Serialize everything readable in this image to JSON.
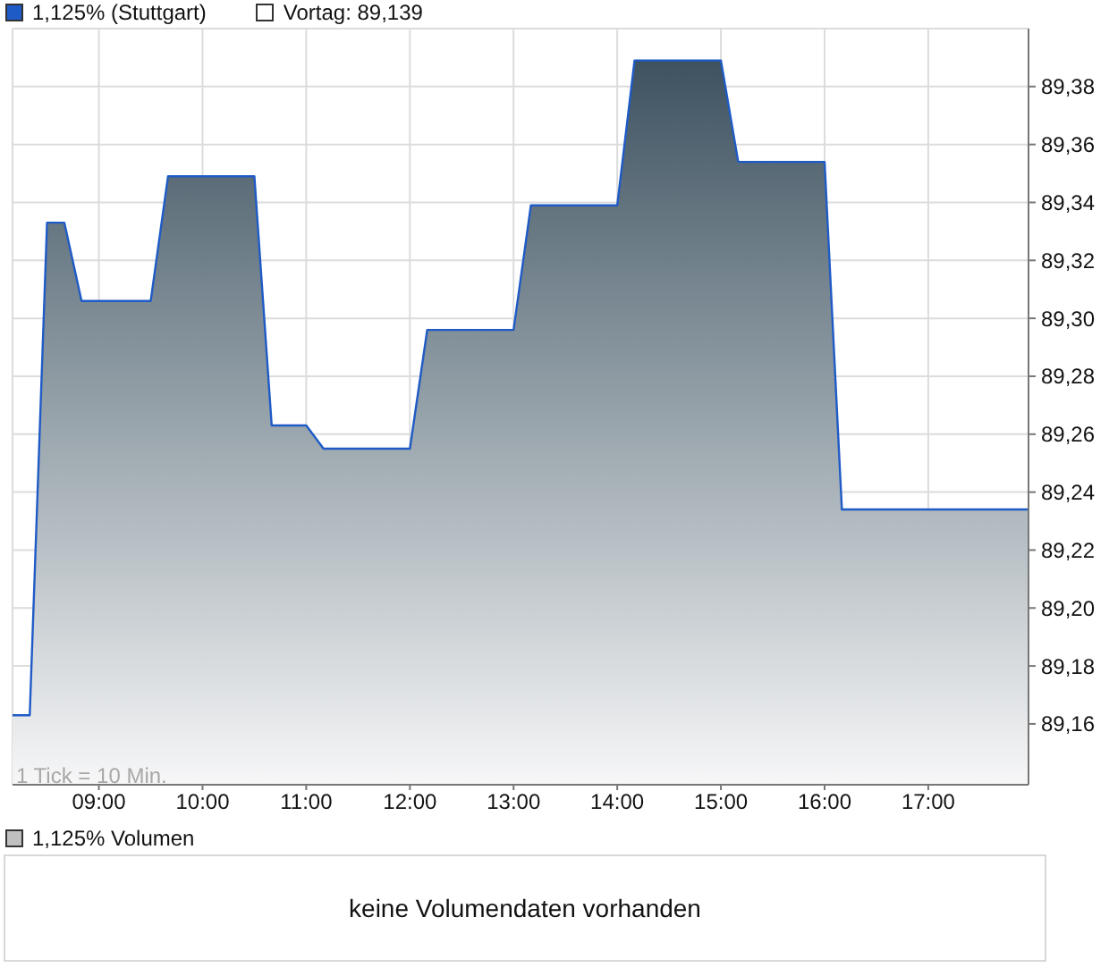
{
  "chart_data": [
    {
      "type": "area",
      "x": [
        8.167,
        8.333,
        8.5,
        8.667,
        8.833,
        9.5,
        9.667,
        10.5,
        10.667,
        11,
        11.167,
        12,
        12.167,
        13,
        13.167,
        14,
        14.167,
        15,
        15.167,
        16,
        16.167,
        17.967
      ],
      "series": [
        {
          "name": "1,125% (Stuttgart)",
          "color": "#1f5bc6",
          "values": [
            89.163,
            89.163,
            89.333,
            89.333,
            89.306,
            89.306,
            89.349,
            89.349,
            89.263,
            89.263,
            89.255,
            89.255,
            89.296,
            89.296,
            89.339,
            89.339,
            89.389,
            89.389,
            89.354,
            89.354,
            89.234,
            89.234
          ]
        }
      ],
      "xlim": [
        8.167,
        17.967
      ],
      "xticks": [
        {
          "value": 9,
          "label": "09:00"
        },
        {
          "value": 10,
          "label": "10:00"
        },
        {
          "value": 11,
          "label": "11:00"
        },
        {
          "value": 12,
          "label": "12:00"
        },
        {
          "value": 13,
          "label": "13:00"
        },
        {
          "value": 14,
          "label": "14:00"
        },
        {
          "value": 15,
          "label": "15:00"
        },
        {
          "value": 16,
          "label": "16:00"
        },
        {
          "value": 17,
          "label": "17:00"
        }
      ],
      "ylim": [
        89.139,
        89.4
      ],
      "yticks": [
        {
          "value": 89.16,
          "label": "89,16"
        },
        {
          "value": 89.18,
          "label": "89,18"
        },
        {
          "value": 89.2,
          "label": "89,20"
        },
        {
          "value": 89.22,
          "label": "89,22"
        },
        {
          "value": 89.24,
          "label": "89,24"
        },
        {
          "value": 89.26,
          "label": "89,26"
        },
        {
          "value": 89.28,
          "label": "89,28"
        },
        {
          "value": 89.3,
          "label": "89,30"
        },
        {
          "value": 89.32,
          "label": "89,32"
        },
        {
          "value": 89.34,
          "label": "89,34"
        },
        {
          "value": 89.36,
          "label": "89,36"
        },
        {
          "value": 89.38,
          "label": "89,38"
        }
      ],
      "grid": true,
      "legend": "top left",
      "annotations": [
        "Vortag: 89,139",
        "1 Tick = 10 Min."
      ]
    },
    {
      "type": "other",
      "series": [
        {
          "name": "1,125% Volumen",
          "color": "#c0c0c0"
        }
      ],
      "legend": "top left",
      "annotations": [
        "keine Volumendaten vorhanden"
      ]
    }
  ]
}
